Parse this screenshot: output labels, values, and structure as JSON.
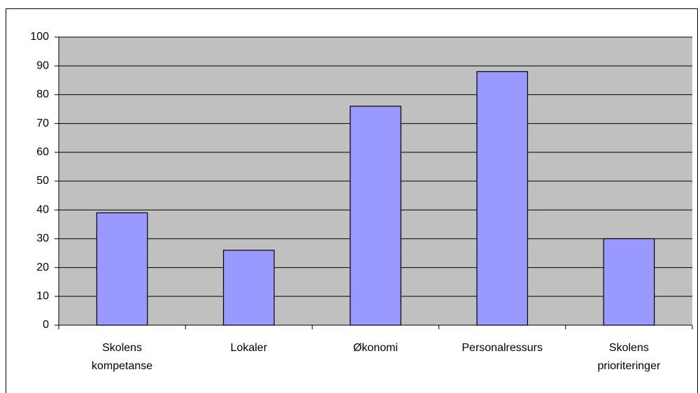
{
  "chart_data": {
    "type": "bar",
    "categories": [
      "Skolens\nkompetanse",
      "Lokaler",
      "Økonomi",
      "Personalressurs",
      "Skolens\nprioriteringer"
    ],
    "values": [
      39,
      26,
      76,
      88,
      30
    ],
    "color": "#9999ff",
    "ylim": [
      0,
      100
    ],
    "yticks": [
      0,
      10,
      20,
      30,
      40,
      50,
      60,
      70,
      80,
      90,
      100
    ],
    "grid": true
  }
}
